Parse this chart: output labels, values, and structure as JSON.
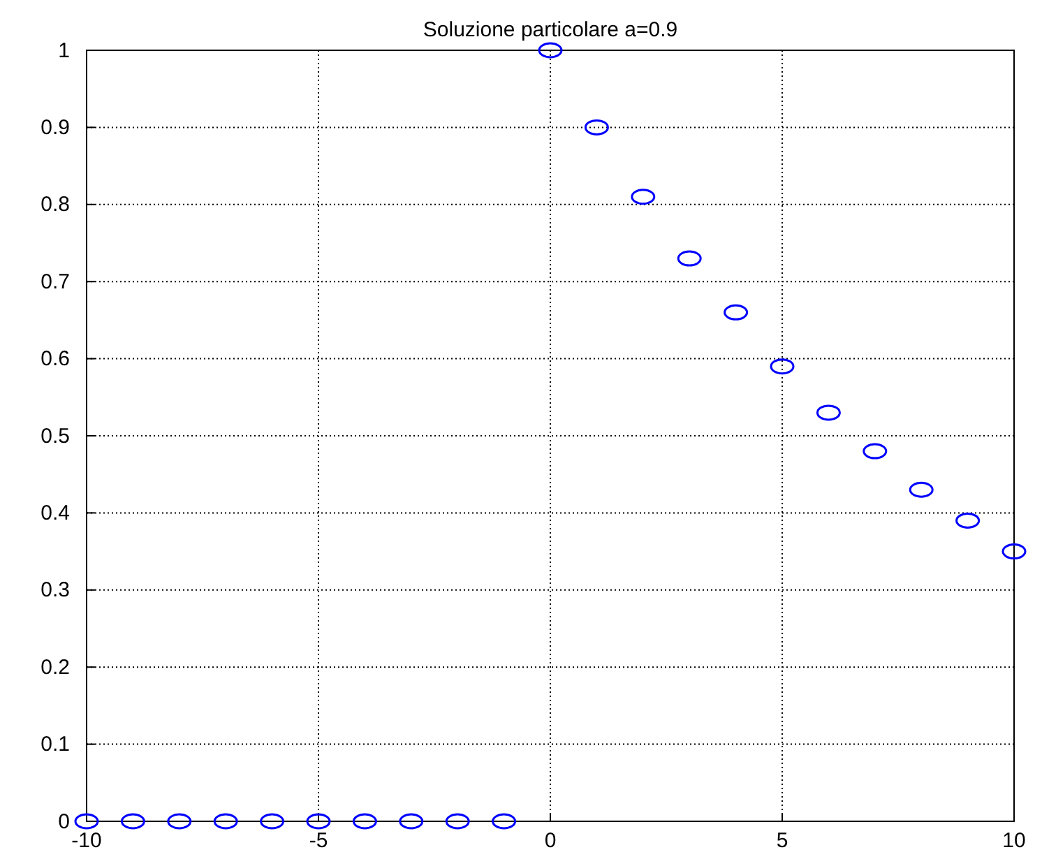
{
  "chart_data": {
    "type": "scatter",
    "title": "Soluzione particolare a=0.9",
    "x": [
      -10,
      -9,
      -8,
      -7,
      -6,
      -5,
      -4,
      -3,
      -2,
      -1,
      0,
      1,
      2,
      3,
      4,
      5,
      6,
      7,
      8,
      9,
      10
    ],
    "series": [
      {
        "color": "#0000ff",
        "values": [
          0,
          0,
          0,
          0,
          0,
          0,
          0,
          0,
          0,
          0,
          1,
          0.9,
          0.81,
          0.73,
          0.66,
          0.59,
          0.53,
          0.48,
          0.43,
          0.39,
          0.35
        ]
      }
    ],
    "xlim": [
      -10,
      10
    ],
    "xticks": [
      -10,
      -5,
      0,
      5,
      10
    ],
    "ylim": [
      0,
      1
    ],
    "yticks": [
      0,
      0.1,
      0.2,
      0.3,
      0.4,
      0.5,
      0.6,
      0.7,
      0.8,
      0.9,
      1
    ],
    "grid": true,
    "marker": "circle"
  }
}
